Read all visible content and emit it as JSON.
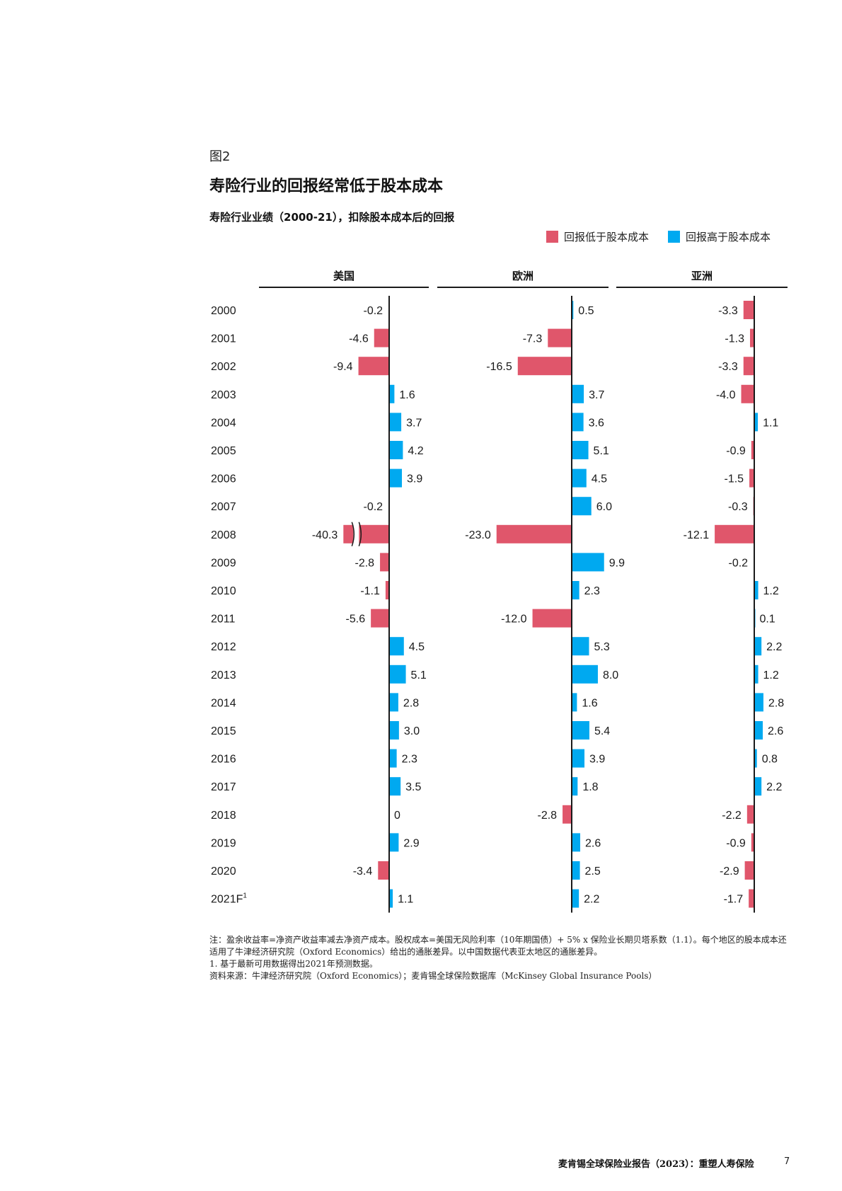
{
  "figure_label": "图2",
  "title": "寿险行业的回报经常低于股本成本",
  "subtitle": "寿险行业业绩（2000-21），扣除股本成本后的回报",
  "legend": {
    "negative": "回报低于股本成本",
    "positive": "回报高于股本成本"
  },
  "colors": {
    "negative": "#e0566b",
    "positive": "#00a9f0",
    "axis": "#1a1a1a"
  },
  "chart_data": {
    "type": "bar",
    "orientation": "horizontal",
    "title": "寿险行业业绩（2000-21），扣除股本成本后的回报",
    "categories": [
      "2000",
      "2001",
      "2002",
      "2003",
      "2004",
      "2005",
      "2006",
      "2007",
      "2008",
      "2009",
      "2010",
      "2011",
      "2012",
      "2013",
      "2014",
      "2015",
      "2016",
      "2017",
      "2018",
      "2019",
      "2020",
      "2021F"
    ],
    "category_superscript": {
      "2021F": "1"
    },
    "series": [
      {
        "name": "美国",
        "values": [
          -0.2,
          -4.6,
          -9.4,
          1.6,
          3.7,
          4.2,
          3.9,
          -0.2,
          -40.3,
          -2.8,
          -1.1,
          -5.6,
          4.5,
          5.1,
          2.8,
          3.0,
          2.3,
          3.5,
          0,
          2.9,
          -3.4,
          1.1
        ],
        "labels": [
          "-0.2",
          "-4.6",
          "-9.4",
          "1.6",
          "3.7",
          "4.2",
          "3.9",
          "-0.2",
          "-40.3",
          "-2.8",
          "-1.1",
          "-5.6",
          "4.5",
          "5.1",
          "2.8",
          "3.0",
          "2.3",
          "3.5",
          "0",
          "2.9",
          "-3.4",
          "1.1"
        ],
        "axis_break": "2008"
      },
      {
        "name": "欧洲",
        "values": [
          0.5,
          -7.3,
          -16.5,
          3.7,
          3.6,
          5.1,
          4.5,
          6.0,
          -23.0,
          9.9,
          2.3,
          -12.0,
          5.3,
          8.0,
          1.6,
          5.4,
          3.9,
          1.8,
          -2.8,
          2.6,
          2.5,
          2.2
        ],
        "labels": [
          "0.5",
          "-7.3",
          "-16.5",
          "3.7",
          "3.6",
          "5.1",
          "4.5",
          "6.0",
          "-23.0",
          "9.9",
          "2.3",
          "-12.0",
          "5.3",
          "8.0",
          "1.6",
          "5.4",
          "3.9",
          "1.8",
          "-2.8",
          "2.6",
          "2.5",
          "2.2"
        ]
      },
      {
        "name": "亚洲",
        "values": [
          -3.3,
          -1.3,
          -3.3,
          -4.0,
          1.1,
          -0.9,
          -1.5,
          -0.3,
          -12.1,
          -0.2,
          1.2,
          0.1,
          2.2,
          1.2,
          2.8,
          2.6,
          0.8,
          2.2,
          -2.2,
          -0.9,
          -2.9,
          -1.7
        ],
        "labels": [
          "-3.3",
          "-1.3",
          "-3.3",
          "-4.0",
          "1.1",
          "-0.9",
          "-1.5",
          "-0.3",
          "-12.1",
          "-0.2",
          "1.2",
          "0.1",
          "2.2",
          "1.2",
          "2.8",
          "2.6",
          "0.8",
          "2.2",
          "-2.2",
          "-0.9",
          "-2.9",
          "-1.7"
        ]
      }
    ],
    "legend_position": "top-right"
  },
  "notes": {
    "note": "注：盈余收益率=净资产收益率减去净资产成本。股权成本=美国无风险利率（10年期国债）+ 5% x 保险业长期贝塔系数（1.1）。每个地区的股本成本还适用了牛津经济研究院（Oxford Economics）给出的通胀差异。以中国数据代表亚太地区的通胀差异。",
    "footnote": "1. 基于最新可用数据得出2021年预测数据。",
    "source": "资料来源：牛津经济研究院（Oxford Economics）；麦肯锡全球保险数据库（McKinsey Global Insurance Pools）"
  },
  "footer": {
    "report": "麦肯锡全球保险业报告（2023）：重塑人寿保险",
    "page": "7"
  }
}
